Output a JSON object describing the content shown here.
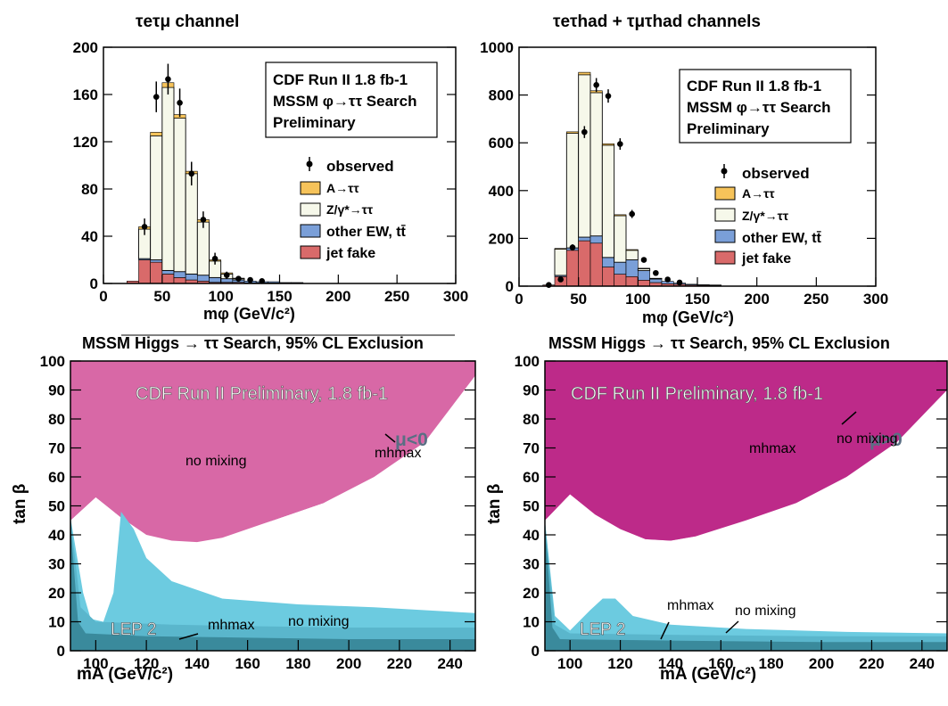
{
  "colors": {
    "signal": "#f6c35a",
    "ztautau": "#f6f8ea",
    "ew": "#7a9fd8",
    "jetfake": "#d96a6a",
    "excl_pink_light": "#d868a6",
    "excl_pink_dark": "#bd2a89",
    "lep": "#3a8a9c",
    "cyan": "#6ccbe0"
  },
  "top_left": {
    "title": "τeτμ channel",
    "box": [
      "CDF Run II  1.8 fb-1",
      "MSSM φ→ττ Search",
      "Preliminary"
    ],
    "legend": [
      "observed",
      "A→ττ",
      "Z/γ*→ττ",
      "other EW, tt̄",
      "jet fake"
    ],
    "xlabel": "mφ  (GeV/c²)"
  },
  "top_right": {
    "title": "τeτhad + τμτhad channels",
    "box": [
      "CDF Run II  1.8 fb-1",
      "MSSM φ→ττ Search",
      "Preliminary"
    ],
    "legend": [
      "observed",
      "A→ττ",
      "Z/γ*→ττ",
      "other EW, tt̄",
      "jet fake"
    ],
    "xlabel": "mφ  (GeV/c²)"
  },
  "bottom_left": {
    "title": "MSSM Higgs → ττ Search, 95% CL Exclusion",
    "banner": "CDF Run II Preliminary, 1.8 fb-1",
    "mu": "μ<0",
    "labels": [
      "no mixing",
      "mhmax",
      "LEP 2",
      "mhmax",
      "no mixing"
    ],
    "xlabel": "mA (GeV/c²)",
    "ylabel": "tan β"
  },
  "bottom_right": {
    "title": "MSSM Higgs → ττ Search, 95% CL Exclusion",
    "banner": "CDF Run II Preliminary, 1.8 fb-1",
    "mu": "μ>0",
    "labels": [
      "mhmax",
      "no mixing",
      "LEP 2",
      "mhmax",
      "no mixing"
    ],
    "xlabel": "mA (GeV/c²)",
    "ylabel": "tan β"
  },
  "chart_data": [
    {
      "type": "bar",
      "title": "τeτμ channel",
      "xlabel": "mφ (GeV/c²)",
      "xlim": [
        0,
        300
      ],
      "ylim": [
        0,
        200
      ],
      "yticks": [
        0,
        40,
        80,
        120,
        160,
        200
      ],
      "xticks": [
        0,
        50,
        100,
        150,
        200,
        250,
        300
      ],
      "bin_width": 10,
      "bin_edges_start": 20,
      "series": [
        {
          "name": "jet fake",
          "values": [
            2,
            20,
            18,
            8,
            5,
            3,
            2,
            1,
            1,
            1,
            0.5,
            0.5,
            0.5,
            0.3,
            0.3
          ]
        },
        {
          "name": "other EW, tt̄",
          "values": [
            0,
            1,
            2,
            3,
            5,
            5,
            5,
            4,
            3,
            2,
            1.5,
            1,
            1,
            0.5,
            0.5
          ]
        },
        {
          "name": "Z/γ*→ττ",
          "values": [
            0,
            25,
            105,
            155,
            130,
            85,
            45,
            14,
            4,
            1,
            0,
            0,
            0,
            0,
            0
          ]
        },
        {
          "name": "A→ττ",
          "values": [
            0,
            2,
            3,
            4,
            3,
            2,
            2,
            1,
            1,
            0.5,
            0,
            0,
            0,
            0,
            0
          ]
        }
      ],
      "observed": [
        {
          "x": 35,
          "y": 48,
          "err": 7
        },
        {
          "x": 45,
          "y": 158,
          "err": 13
        },
        {
          "x": 55,
          "y": 173,
          "err": 13
        },
        {
          "x": 65,
          "y": 153,
          "err": 12
        },
        {
          "x": 75,
          "y": 93,
          "err": 10
        },
        {
          "x": 85,
          "y": 54,
          "err": 7
        },
        {
          "x": 95,
          "y": 21,
          "err": 5
        },
        {
          "x": 105,
          "y": 7,
          "err": 3
        },
        {
          "x": 115,
          "y": 4,
          "err": 2
        },
        {
          "x": 125,
          "y": 3,
          "err": 2
        },
        {
          "x": 135,
          "y": 2,
          "err": 1.5
        }
      ]
    },
    {
      "type": "bar",
      "title": "τeτhad + τμτhad channels",
      "xlabel": "mφ (GeV/c²)",
      "xlim": [
        0,
        300
      ],
      "ylim": [
        0,
        1000
      ],
      "yticks": [
        0,
        200,
        400,
        600,
        800,
        1000
      ],
      "xticks": [
        0,
        50,
        100,
        150,
        200,
        250,
        300
      ],
      "bin_width": 10,
      "bin_edges_start": 20,
      "series": [
        {
          "name": "jet fake",
          "values": [
            5,
            40,
            150,
            190,
            180,
            80,
            50,
            40,
            25,
            15,
            10,
            8,
            5,
            4,
            3
          ]
        },
        {
          "name": "other EW, tt̄",
          "values": [
            0,
            5,
            10,
            15,
            30,
            40,
            50,
            70,
            40,
            15,
            10,
            5,
            3,
            2,
            2
          ]
        },
        {
          "name": "Z/γ*→ττ",
          "values": [
            0,
            110,
            480,
            680,
            600,
            470,
            195,
            40,
            8,
            2,
            0,
            0,
            0,
            0,
            0
          ]
        },
        {
          "name": "A→ττ",
          "values": [
            0,
            3,
            6,
            10,
            8,
            6,
            4,
            3,
            2,
            1,
            0,
            0,
            0,
            0,
            0
          ]
        }
      ],
      "observed": [
        {
          "x": 25,
          "y": 5,
          "err": 3
        },
        {
          "x": 35,
          "y": 28,
          "err": 6
        },
        {
          "x": 45,
          "y": 162,
          "err": 13
        },
        {
          "x": 55,
          "y": 645,
          "err": 25
        },
        {
          "x": 65,
          "y": 842,
          "err": 29
        },
        {
          "x": 75,
          "y": 796,
          "err": 28
        },
        {
          "x": 85,
          "y": 595,
          "err": 24
        },
        {
          "x": 95,
          "y": 302,
          "err": 17
        },
        {
          "x": 105,
          "y": 110,
          "err": 10
        },
        {
          "x": 115,
          "y": 55,
          "err": 7
        },
        {
          "x": 125,
          "y": 28,
          "err": 5
        },
        {
          "x": 135,
          "y": 15,
          "err": 4
        }
      ]
    },
    {
      "type": "area",
      "title": "MSSM Higgs → ττ Search, 95% CL Exclusion",
      "xlabel": "mA (GeV/c²)",
      "ylabel": "tan β",
      "xlim": [
        90,
        250
      ],
      "ylim": [
        0,
        100
      ],
      "xticks": [
        100,
        120,
        140,
        160,
        180,
        200,
        220,
        240
      ],
      "yticks": [
        0,
        10,
        20,
        30,
        40,
        50,
        60,
        70,
        80,
        90,
        100
      ],
      "regions": [
        {
          "name": "no mixing",
          "boundary": [
            [
              90,
              45
            ],
            [
              100,
              53
            ],
            [
              110,
              46
            ],
            [
              120,
              40
            ],
            [
              130,
              38
            ],
            [
              140,
              37.5
            ],
            [
              150,
              39
            ],
            [
              170,
              45
            ],
            [
              190,
              51
            ],
            [
              210,
              60
            ],
            [
              230,
              72
            ],
            [
              250,
              95
            ]
          ]
        },
        {
          "name": "mhmax",
          "boundary": [
            [
              90,
              45
            ],
            [
              100,
              53
            ],
            [
              110,
              46
            ],
            [
              120,
              41
            ],
            [
              130,
              38.5
            ],
            [
              140,
              38
            ],
            [
              150,
              39.5
            ],
            [
              170,
              45
            ],
            [
              190,
              51
            ],
            [
              210,
              61
            ],
            [
              230,
              73
            ],
            [
              250,
              96
            ]
          ]
        },
        {
          "name": "mhmax low",
          "boundary": [
            [
              90,
              46
            ],
            [
              95,
              20
            ],
            [
              98,
              11
            ],
            [
              103,
              10
            ],
            [
              107,
              20
            ],
            [
              110,
              48
            ],
            [
              115,
              42
            ],
            [
              120,
              32
            ],
            [
              130,
              24
            ],
            [
              150,
              18
            ],
            [
              180,
              16
            ],
            [
              210,
              15
            ],
            [
              250,
              13
            ]
          ]
        },
        {
          "name": "no mixing low",
          "boundary": [
            [
              90,
              46
            ],
            [
              94,
              15
            ],
            [
              100,
              10
            ],
            [
              130,
              9
            ],
            [
              160,
              8.5
            ],
            [
              200,
              8
            ],
            [
              250,
              8
            ]
          ]
        },
        {
          "name": "LEP 2",
          "boundary": [
            [
              90,
              44
            ],
            [
              93,
              10
            ],
            [
              96,
              6
            ],
            [
              120,
              5
            ],
            [
              160,
              4.5
            ],
            [
              200,
              4
            ],
            [
              250,
              4
            ]
          ]
        }
      ]
    },
    {
      "type": "area",
      "title": "MSSM Higgs → ττ Search, 95% CL Exclusion",
      "xlabel": "mA (GeV/c²)",
      "ylabel": "tan β",
      "xlim": [
        90,
        250
      ],
      "ylim": [
        0,
        100
      ],
      "xticks": [
        100,
        120,
        140,
        160,
        180,
        200,
        220,
        240
      ],
      "yticks": [
        0,
        10,
        20,
        30,
        40,
        50,
        60,
        70,
        80,
        90,
        100
      ],
      "regions": [
        {
          "name": "no mixing",
          "boundary": [
            [
              90,
              45
            ],
            [
              100,
              54
            ],
            [
              110,
              47
            ],
            [
              120,
              42
            ],
            [
              130,
              38.5
            ],
            [
              140,
              38
            ],
            [
              150,
              39.5
            ],
            [
              170,
              46
            ],
            [
              190,
              53
            ],
            [
              210,
              63
            ],
            [
              230,
              76
            ],
            [
              250,
              98
            ]
          ]
        },
        {
          "name": "mhmax",
          "boundary": [
            [
              90,
              45
            ],
            [
              100,
              54
            ],
            [
              110,
              47
            ],
            [
              120,
              42
            ],
            [
              130,
              38.5
            ],
            [
              140,
              38
            ],
            [
              150,
              39.5
            ],
            [
              170,
              45
            ],
            [
              190,
              51
            ],
            [
              210,
              60
            ],
            [
              230,
              72
            ],
            [
              250,
              90
            ]
          ]
        },
        {
          "name": "mhmax low",
          "boundary": [
            [
              90,
              45
            ],
            [
              94,
              12
            ],
            [
              100,
              7
            ],
            [
              108,
              14
            ],
            [
              113,
              18
            ],
            [
              118,
              18
            ],
            [
              125,
              12
            ],
            [
              140,
              9
            ],
            [
              170,
              7.5
            ],
            [
              210,
              6.5
            ],
            [
              250,
              6
            ]
          ]
        },
        {
          "name": "no mixing low",
          "boundary": [
            [
              90,
              45
            ],
            [
              94,
              9
            ],
            [
              100,
              6
            ],
            [
              140,
              5.5
            ],
            [
              200,
              5
            ],
            [
              250,
              5
            ]
          ]
        },
        {
          "name": "LEP 2",
          "boundary": [
            [
              90,
              44
            ],
            [
              93,
              8
            ],
            [
              96,
              4
            ],
            [
              140,
              3.5
            ],
            [
              200,
              3
            ],
            [
              250,
              3
            ]
          ]
        }
      ]
    }
  ]
}
